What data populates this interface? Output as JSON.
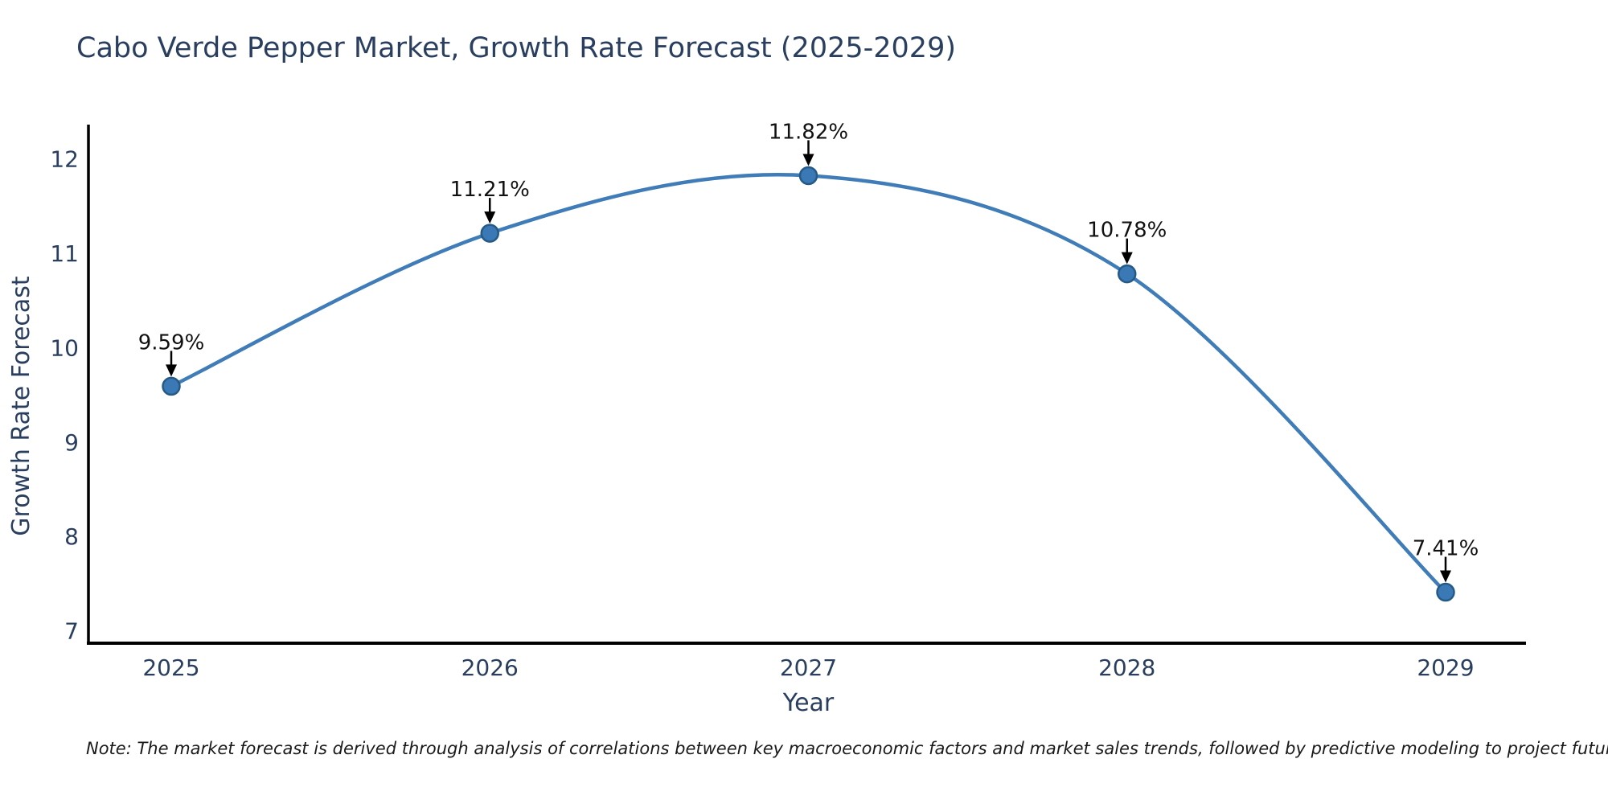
{
  "page": {
    "background": "#ffffff"
  },
  "header": {
    "title": "Cabo Verde Pepper Market, Growth Rate Forecast (2025-2029)"
  },
  "footnote": {
    "text": "Note: The market forecast is derived through analysis of correlations between key macroeconomic factors and market sales trends, followed by predictive modeling to project future sales."
  },
  "chart_data": {
    "type": "line",
    "title": "Cabo Verde Pepper Market, Growth Rate Forecast (2025-2029)",
    "xlabel": "Year",
    "ylabel": "Growth Rate Forecast",
    "categories": [
      "2025",
      "2026",
      "2027",
      "2028",
      "2029"
    ],
    "values": [
      9.59,
      11.21,
      11.82,
      10.78,
      7.41
    ],
    "point_labels": [
      "9.59%",
      "11.21%",
      "11.82%",
      "10.78%",
      "7.41%"
    ],
    "yticks": [
      7,
      8,
      9,
      10,
      11,
      12
    ],
    "ylim": [
      6.87,
      12.36
    ],
    "line_shape": "spline",
    "grid": false,
    "legend": "none",
    "colors": {
      "line": "#3f7cb8",
      "marker_fill": "#3a79b5",
      "marker_edge": "#265a86",
      "axis": "#000000",
      "tick_label": "#2a3f5f",
      "axis_label": "#2a3f5f",
      "title": "#2a3f5f",
      "annotation_text": "#111111",
      "annotation_arrow": "#000000"
    }
  }
}
